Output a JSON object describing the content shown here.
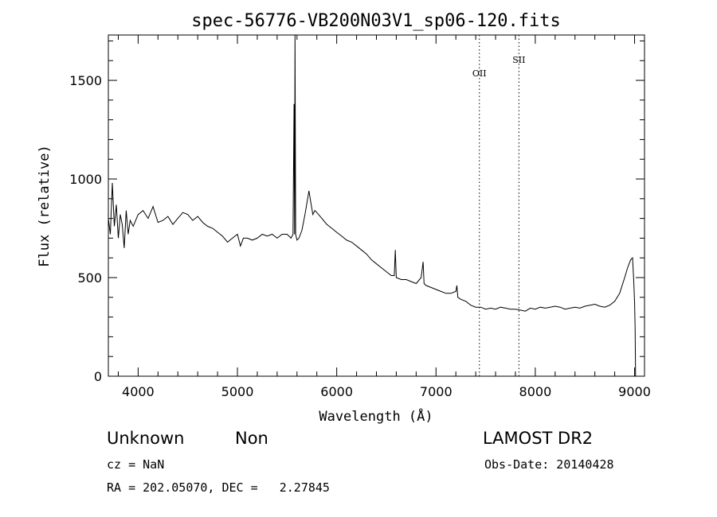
{
  "chart_data": {
    "type": "line",
    "title": "spec-56776-VB200N03V1_sp06-120.fits",
    "xlabel": "Wavelength (Å)",
    "ylabel": "Flux (relative)",
    "xlim": [
      3700,
      9100
    ],
    "ylim": [
      0,
      1730
    ],
    "xticks": [
      4000,
      5000,
      6000,
      7000,
      8000,
      9000
    ],
    "xtick_labels": [
      "4000",
      "5000",
      "6000",
      "7000",
      "8000",
      "9000"
    ],
    "yticks": [
      0,
      500,
      1000,
      1500
    ],
    "ytick_labels": [
      "0",
      "500",
      "1000",
      "1500"
    ],
    "grid": false,
    "series": [
      {
        "x": [
          3700,
          3720,
          3740,
          3760,
          3780,
          3800,
          3820,
          3840,
          3860,
          3880,
          3900,
          3920,
          3950,
          4000,
          4050,
          4100,
          4150,
          4200,
          4250,
          4300,
          4350,
          4400,
          4450,
          4500,
          4550,
          4600,
          4650,
          4700,
          4750,
          4800,
          4850,
          4900,
          4950,
          5000,
          5030,
          5060,
          5100,
          5150,
          5200,
          5250,
          5300,
          5350,
          5400,
          5450,
          5500,
          5520,
          5540,
          5560,
          5570,
          5576,
          5580,
          5586,
          5600,
          5620,
          5650,
          5680,
          5700,
          5720,
          5740,
          5760,
          5780,
          5800,
          5850,
          5900,
          5950,
          6000,
          6050,
          6100,
          6150,
          6200,
          6250,
          6300,
          6350,
          6400,
          6450,
          6500,
          6550,
          6580,
          6590,
          6600,
          6650,
          6700,
          6750,
          6800,
          6850,
          6870,
          6880,
          6900,
          6950,
          7000,
          7050,
          7100,
          7150,
          7200,
          7210,
          7220,
          7250,
          7300,
          7350,
          7400,
          7450,
          7500,
          7550,
          7600,
          7650,
          7700,
          7750,
          7800,
          7850,
          7900,
          7950,
          8000,
          8050,
          8100,
          8150,
          8200,
          8250,
          8300,
          8350,
          8400,
          8450,
          8500,
          8550,
          8600,
          8650,
          8700,
          8750,
          8800,
          8850,
          8900,
          8930,
          8960,
          8980,
          8990,
          9000,
          9005,
          9010
        ],
        "y": [
          800,
          720,
          980,
          760,
          870,
          700,
          820,
          770,
          650,
          840,
          720,
          790,
          760,
          820,
          840,
          800,
          860,
          780,
          790,
          810,
          770,
          800,
          830,
          820,
          790,
          810,
          780,
          760,
          750,
          730,
          710,
          680,
          700,
          720,
          660,
          700,
          700,
          690,
          700,
          720,
          710,
          720,
          700,
          720,
          720,
          710,
          700,
          720,
          1380,
          720,
          1730,
          720,
          690,
          700,
          740,
          820,
          880,
          940,
          880,
          820,
          840,
          830,
          800,
          770,
          750,
          730,
          710,
          690,
          680,
          660,
          640,
          620,
          590,
          570,
          550,
          530,
          510,
          510,
          640,
          500,
          490,
          490,
          480,
          470,
          500,
          580,
          470,
          460,
          450,
          440,
          430,
          420,
          420,
          430,
          460,
          400,
          390,
          380,
          360,
          350,
          350,
          340,
          345,
          340,
          350,
          345,
          340,
          340,
          335,
          330,
          345,
          340,
          350,
          345,
          350,
          355,
          350,
          340,
          345,
          350,
          345,
          355,
          360,
          365,
          355,
          350,
          360,
          380,
          420,
          500,
          550,
          590,
          600,
          500,
          380,
          250,
          0
        ]
      }
    ],
    "annotations": [
      {
        "label": "OII",
        "x": 7437
      },
      {
        "label": "SII",
        "x": 7835
      }
    ]
  },
  "info": {
    "class": "Unknown",
    "subclass": "Non",
    "survey": "LAMOST DR2",
    "cz": "cz = NaN",
    "obs_date": "Obs-Date: 20140428",
    "coords": "RA = 202.05070, DEC =   2.27845"
  }
}
